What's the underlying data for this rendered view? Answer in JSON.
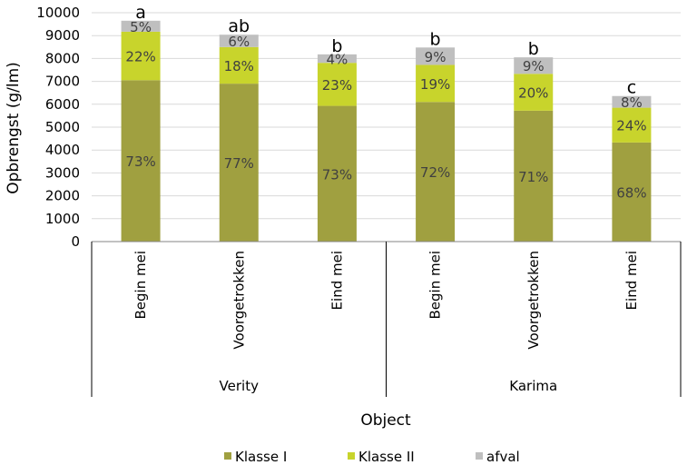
{
  "chart_data": {
    "type": "bar",
    "stacked": true,
    "ylabel": "Opbrengst (g/lm)",
    "xlabel": "Object",
    "ylim": [
      0,
      10000
    ],
    "yticks": [
      0,
      1000,
      2000,
      3000,
      4000,
      5000,
      6000,
      7000,
      8000,
      9000,
      10000
    ],
    "grid": true,
    "legend_position": "bottom",
    "groups": [
      {
        "label": "Verity",
        "categories": [
          "Begin mei",
          "Voorgetrokken",
          "Eind mei"
        ]
      },
      {
        "label": "Karima",
        "categories": [
          "Begin mei",
          "Voorgetrokken",
          "Eind mei"
        ]
      }
    ],
    "series": [
      {
        "name": "Klasse I",
        "color": "#a0a040",
        "values": [
          7050,
          6900,
          5930,
          6100,
          5720,
          4330
        ],
        "labels": [
          "73%",
          "77%",
          "73%",
          "72%",
          "71%",
          "68%"
        ]
      },
      {
        "name": "Klasse II",
        "color": "#c8d42c",
        "values": [
          2120,
          1600,
          1880,
          1620,
          1610,
          1520
        ],
        "labels": [
          "22%",
          "18%",
          "23%",
          "19%",
          "20%",
          "24%"
        ]
      },
      {
        "name": "afval",
        "color": "#bfbfbf",
        "values": [
          480,
          540,
          370,
          760,
          720,
          510
        ],
        "labels": [
          "5%",
          "6%",
          "4%",
          "9%",
          "9%",
          "8%"
        ]
      }
    ],
    "significance": [
      "a",
      "ab",
      "b",
      "b",
      "b",
      "c"
    ]
  }
}
